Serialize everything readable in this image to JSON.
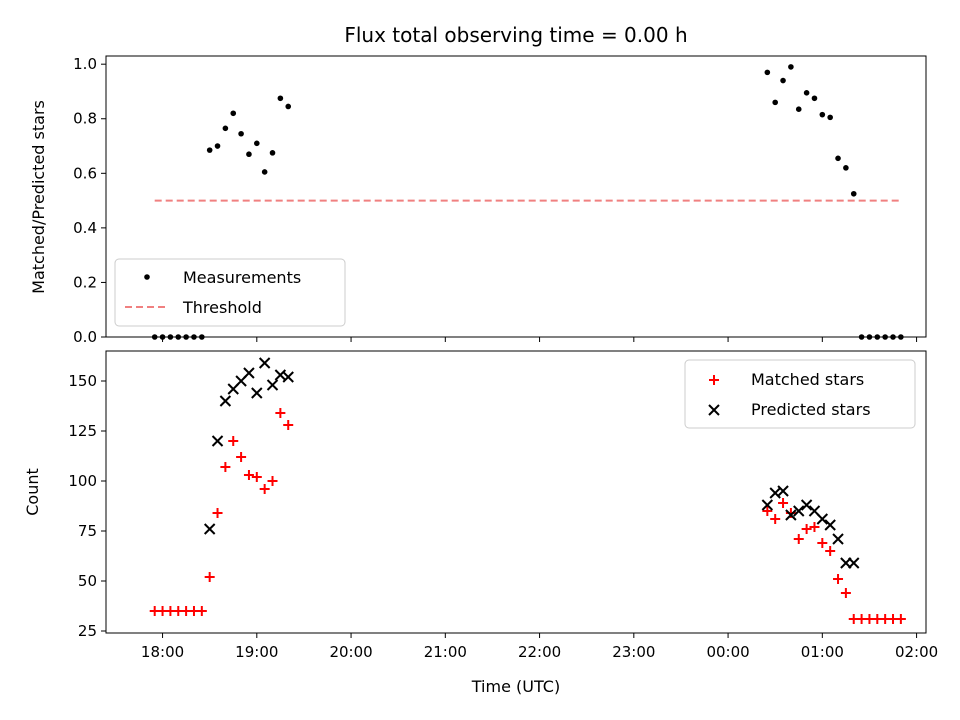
{
  "chart_data": [
    {
      "type": "scatter",
      "title": "Flux total observing time = 0.00 h",
      "xlabel": "",
      "ylabel": "Matched/Predicted stars",
      "xlim_hours": [
        17.4,
        26.1
      ],
      "ylim": [
        0,
        1.03
      ],
      "yticks": [
        0.0,
        0.2,
        0.4,
        0.6,
        0.8,
        1.0
      ],
      "ytick_labels": [
        "0.0",
        "0.2",
        "0.4",
        "0.6",
        "0.8",
        "1.0"
      ],
      "legend": {
        "placement": "lower-left",
        "entries": [
          "Measurements",
          "Threshold"
        ]
      },
      "threshold": {
        "name": "Threshold",
        "value": 0.5,
        "x": [
          "17:55",
          "01:50"
        ],
        "color": "#f08080"
      },
      "series": [
        {
          "name": "Measurements",
          "color": "#000000",
          "x": [
            "17:55",
            "18:00",
            "18:05",
            "18:10",
            "18:15",
            "18:20",
            "18:25",
            "18:30",
            "18:35",
            "18:40",
            "18:45",
            "18:50",
            "18:55",
            "19:00",
            "19:05",
            "19:10",
            "19:15",
            "19:20",
            "00:25",
            "00:30",
            "00:35",
            "00:40",
            "00:45",
            "00:50",
            "00:55",
            "01:00",
            "01:05",
            "01:10",
            "01:15",
            "01:20",
            "01:25",
            "01:30",
            "01:35",
            "01:40",
            "01:45",
            "01:50"
          ],
          "y": [
            0,
            0,
            0,
            0,
            0,
            0,
            0,
            0.685,
            0.7,
            0.765,
            0.82,
            0.745,
            0.67,
            0.71,
            0.605,
            0.675,
            0.875,
            0.845,
            0.97,
            0.86,
            0.94,
            0.99,
            0.835,
            0.895,
            0.875,
            0.815,
            0.805,
            0.655,
            0.62,
            0.525,
            0,
            0,
            0,
            0,
            0,
            0
          ]
        }
      ]
    },
    {
      "type": "scatter",
      "title": "",
      "xlabel": "Time (UTC)",
      "ylabel": "Count",
      "xlim_hours": [
        17.4,
        26.1
      ],
      "ylim": [
        24,
        165
      ],
      "yticks": [
        25,
        50,
        75,
        100,
        125,
        150
      ],
      "ytick_labels": [
        "25",
        "50",
        "75",
        "100",
        "125",
        "150"
      ],
      "xticks_hours": [
        18,
        19,
        20,
        21,
        22,
        23,
        24,
        25,
        26
      ],
      "xtick_labels": [
        "18:00",
        "19:00",
        "20:00",
        "21:00",
        "22:00",
        "23:00",
        "00:00",
        "01:00",
        "02:00"
      ],
      "legend": {
        "placement": "top-right",
        "entries": [
          "Matched stars",
          "Predicted stars"
        ]
      },
      "series": [
        {
          "name": "Matched stars",
          "marker": "plus",
          "color": "#ff0000",
          "x": [
            "17:55",
            "18:00",
            "18:05",
            "18:10",
            "18:15",
            "18:20",
            "18:25",
            "18:30",
            "18:35",
            "18:40",
            "18:45",
            "18:50",
            "18:55",
            "19:00",
            "19:05",
            "19:10",
            "19:15",
            "19:20",
            "00:25",
            "00:30",
            "00:35",
            "00:40",
            "00:45",
            "00:50",
            "00:55",
            "01:00",
            "01:05",
            "01:10",
            "01:15",
            "01:20",
            "01:25",
            "01:30",
            "01:35",
            "01:40",
            "01:45",
            "01:50"
          ],
          "y": [
            35,
            35,
            35,
            35,
            35,
            35,
            35,
            52,
            84,
            107,
            120,
            112,
            103,
            102,
            96,
            100,
            134,
            128,
            85,
            81,
            89,
            84,
            71,
            76,
            77,
            69,
            65,
            51,
            44,
            31,
            31,
            31,
            31,
            31,
            31,
            31
          ]
        },
        {
          "name": "Predicted stars",
          "marker": "x",
          "color": "#000000",
          "x": [
            "18:30",
            "18:35",
            "18:40",
            "18:45",
            "18:50",
            "18:55",
            "19:00",
            "19:05",
            "19:10",
            "19:15",
            "19:20",
            "00:25",
            "00:30",
            "00:35",
            "00:40",
            "00:45",
            "00:50",
            "00:55",
            "01:00",
            "01:05",
            "01:10",
            "01:15",
            "01:20"
          ],
          "y": [
            76,
            120,
            140,
            146,
            150,
            154,
            144,
            159,
            148,
            153,
            152,
            88,
            94,
            95,
            83,
            85,
            88,
            85,
            81,
            78,
            71,
            59,
            59
          ]
        }
      ]
    }
  ]
}
